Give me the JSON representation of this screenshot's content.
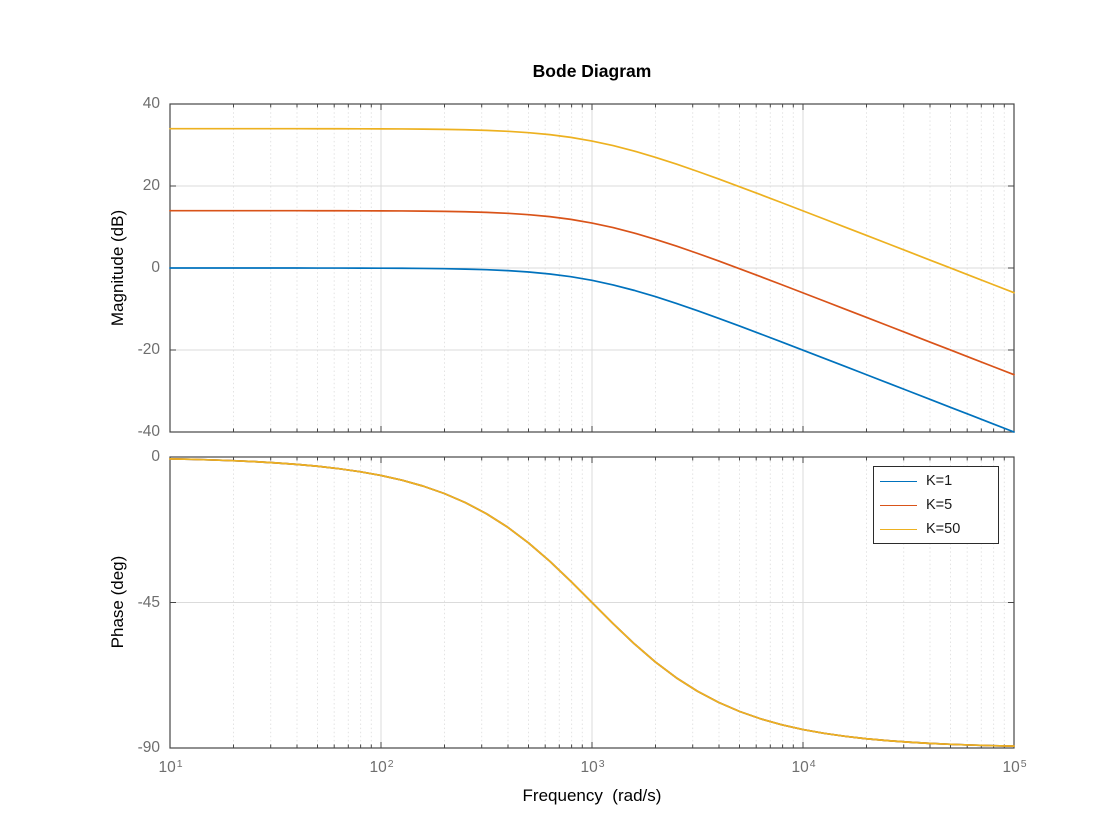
{
  "figure": {
    "title": "Bode Diagram",
    "background": "#ffffff"
  },
  "style": {
    "axis_color": "#464646",
    "tick_label_color": "#6e6e6e",
    "grid_color": "#dbdbdb",
    "minor_grid_color": "#e3e3e3",
    "text_color": "#000000",
    "legend_border_color": "#2b2b2b"
  },
  "chart_data": {
    "type": "line",
    "title": "Bode Diagram",
    "subplots": [
      "magnitude",
      "phase"
    ],
    "x_axis": {
      "label": "Frequency  (rad/s)",
      "scale": "log",
      "range": [
        10,
        100000
      ],
      "tick_base": "10",
      "tick_exponents": [
        1,
        2,
        3,
        4,
        5
      ],
      "tick_labels": [
        "10^1",
        "10^2",
        "10^3",
        "10^4",
        "10^5"
      ]
    },
    "magnitude_axis": {
      "label": "Magnitude (dB)",
      "range": [
        -40,
        40
      ],
      "ticks": [
        40,
        20,
        0,
        -20,
        -40
      ],
      "inner_gridlines": [
        20,
        0,
        -20
      ]
    },
    "phase_axis": {
      "label": "Phase (deg)",
      "range": [
        -90,
        0
      ],
      "ticks": [
        0,
        -45,
        -90
      ],
      "inner_gridlines": [
        -45
      ]
    },
    "grid": true,
    "minor_grid": true,
    "legend": {
      "position": "phase-top-right",
      "entries": [
        "K=1",
        "K=5",
        "K=50"
      ]
    },
    "frequencies_rad_s": [
      10,
      12.589,
      15.849,
      19.953,
      25.119,
      31.623,
      39.811,
      50.119,
      63.096,
      79.433,
      100,
      125.89,
      158.49,
      199.53,
      251.19,
      316.23,
      398.11,
      501.19,
      630.96,
      794.33,
      1000,
      1258.9,
      1584.9,
      1995.3,
      2511.9,
      3162.3,
      3981.1,
      5011.9,
      6309.6,
      7943.3,
      10000,
      12589,
      15849,
      19953,
      25119,
      31623,
      39811,
      50119,
      63096,
      79433,
      100000
    ],
    "series": [
      {
        "name": "K=1",
        "color": "#0072BD",
        "magnitude_db": [
          -0.0004,
          -0.0007,
          -0.0011,
          -0.0017,
          -0.0027,
          -0.0043,
          -0.0069,
          -0.0109,
          -0.0172,
          -0.0273,
          -0.0432,
          -0.0683,
          -0.1077,
          -0.1695,
          -0.2657,
          -0.4139,
          -0.6389,
          -0.9737,
          -1.4554,
          -2.1246,
          -3.0103,
          -4.1251,
          -5.4568,
          -6.9734,
          -8.6392,
          -10.4139,
          -12.2657,
          -14.1695,
          -16.1077,
          -18.0683,
          -20.0432,
          -22.0273,
          -24.0172,
          -26.0109,
          -28.0069,
          -30.0043,
          -32.0027,
          -34.0017,
          -36.0011,
          -38.0007,
          -40.0004
        ]
      },
      {
        "name": "K=5",
        "color": "#D95319",
        "magnitude_db": [
          13.979,
          13.9787,
          13.9783,
          13.9777,
          13.9767,
          13.9751,
          13.9725,
          13.9685,
          13.9622,
          13.9521,
          13.9362,
          13.9111,
          13.8717,
          13.8099,
          13.7137,
          13.5655,
          13.3405,
          13.0057,
          12.524,
          11.8548,
          10.9691,
          9.8543,
          8.5226,
          7.006,
          5.3402,
          3.5655,
          1.7137,
          -0.1901,
          -2.1283,
          -4.0889,
          -6.0638,
          -8.0479,
          -10.0378,
          -12.0315,
          -14.0275,
          -16.0249,
          -18.0233,
          -20.0223,
          -22.0217,
          -24.0213,
          -26.021
        ]
      },
      {
        "name": "K=50",
        "color": "#EDB120",
        "magnitude_db": [
          33.979,
          33.9787,
          33.9783,
          33.9777,
          33.9767,
          33.9751,
          33.9725,
          33.9685,
          33.9622,
          33.9521,
          33.9362,
          33.9111,
          33.8717,
          33.8099,
          33.7137,
          33.5655,
          33.3405,
          33.0057,
          32.524,
          31.8548,
          30.9691,
          29.8543,
          28.5226,
          27.006,
          25.3402,
          23.5655,
          21.7137,
          19.8099,
          17.8717,
          15.9111,
          13.9362,
          11.9521,
          9.9622,
          7.9685,
          5.9725,
          3.9751,
          1.9767,
          -0.0223,
          -2.0217,
          -4.0213,
          -6.021
        ]
      }
    ],
    "phase_deg_all_series": [
      -0.573,
      -0.721,
      -0.908,
      -1.143,
      -1.439,
      -1.811,
      -2.28,
      -2.869,
      -3.611,
      -4.541,
      -5.711,
      -7.175,
      -9.006,
      -11.285,
      -14.106,
      -17.548,
      -21.697,
      -26.62,
      -32.248,
      -38.458,
      -45,
      -51.542,
      -57.752,
      -63.38,
      -68.303,
      -72.452,
      -75.894,
      -78.715,
      -80.994,
      -82.825,
      -84.289,
      -85.459,
      -86.389,
      -87.131,
      -87.72,
      -88.189,
      -88.561,
      -88.857,
      -89.092,
      -89.279,
      -89.427
    ]
  }
}
